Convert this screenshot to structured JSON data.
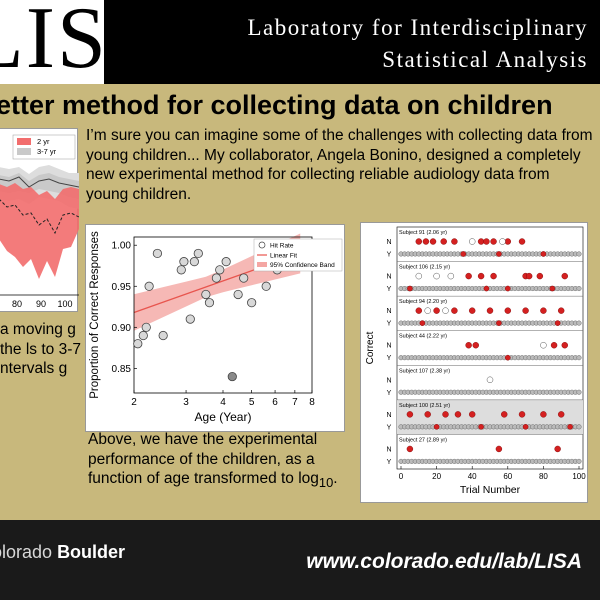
{
  "header": {
    "logo_text": "LISA",
    "lab_line1": "Laboratory for Interdisciplinary",
    "lab_line2": "Statistical Analysis"
  },
  "slide": {
    "title": "etter method for collecting data on children",
    "intro": "I’m sure you can imagine some of the challenges with collecting data from young children... My collaborator, Angela Bonino, designed a completely new experimental method for collecting reliable audiology data from young children.",
    "left_text": "a moving g the ls to 3-7 ntervals g",
    "above_text_main": "Above, we have the experimental performance of the children, as a function of age transformed to log",
    "above_text_sub": "10",
    "above_text_end": "."
  },
  "footer": {
    "university_prefix": "olorado ",
    "university_bold": "Boulder",
    "url": "www.colorado.edu/lab/LISA"
  },
  "left_chart": {
    "legend": [
      "2 yr",
      "3-7 yr"
    ],
    "x_ticks": [
      "80",
      "90",
      "100"
    ],
    "colors": {
      "band_2yr": "#f26d6d",
      "band_37yr": "#c9c9c9"
    }
  },
  "chart_data": [
    {
      "type": "scatter",
      "title": "",
      "xlabel": "Age (Year)",
      "ylabel": "Proportion of Correct Responses",
      "x_ticks": [
        "2",
        "3",
        "4",
        "5",
        "6",
        "7",
        "8"
      ],
      "y_ticks": [
        "0.85",
        "0.90",
        "0.95",
        "1.00"
      ],
      "xlim": [
        2,
        8
      ],
      "ylim": [
        0.82,
        1.01
      ],
      "legend": [
        "Hit Rate",
        "Linear Fit",
        "95% Confidence Band"
      ],
      "series": [
        {
          "name": "Hit Rate",
          "x": [
            2.06,
            2.15,
            2.2,
            2.25,
            2.4,
            2.51,
            2.89,
            2.95,
            3.1,
            3.2,
            3.3,
            3.5,
            3.6,
            3.8,
            3.9,
            4.1,
            4.3,
            4.5,
            4.7,
            5.0,
            5.3,
            5.6,
            6.1,
            7.3
          ],
          "y": [
            0.88,
            0.89,
            0.9,
            0.95,
            0.99,
            0.89,
            0.97,
            0.98,
            0.91,
            0.98,
            0.99,
            0.94,
            0.93,
            0.96,
            0.97,
            0.98,
            0.84,
            0.94,
            0.96,
            0.93,
            0.98,
            0.95,
            0.97,
            0.99
          ]
        },
        {
          "name": "Linear Fit",
          "x": [
            2.0,
            7.3
          ],
          "y": [
            0.918,
            0.99
          ]
        }
      ],
      "colors": {
        "fit": "#e8554e",
        "band": "#f4a6a3",
        "points": "#d8d8d8",
        "highlight": "#8a8a8a"
      }
    },
    {
      "type": "scatter",
      "title": "",
      "xlabel": "Trial Number",
      "ylabel": "Correct",
      "x_ticks": [
        "0",
        "20",
        "40",
        "60",
        "80",
        "100"
      ],
      "xlim": [
        0,
        100
      ],
      "row_labels": [
        "N",
        "Y"
      ],
      "series": [
        {
          "name": "Subject 91 (2.06 yr)",
          "n_hits": [
            10,
            14,
            18,
            24,
            30,
            45,
            48,
            52,
            60,
            68
          ],
          "n_miss": [
            40,
            57
          ],
          "y_hits": [
            35,
            55,
            80
          ],
          "y_miss": []
        },
        {
          "name": "Subject 106 (2.15 yr)",
          "n_hits": [
            38,
            45,
            52,
            70,
            72,
            78,
            92
          ],
          "n_miss": [
            10,
            20,
            28
          ],
          "y_hits": [
            5,
            48,
            60,
            85
          ],
          "y_miss": []
        },
        {
          "name": "Subject 94 (2.20 yr)",
          "n_hits": [
            10,
            20,
            30,
            40,
            50,
            60,
            70,
            80,
            90
          ],
          "n_miss": [
            15,
            25
          ],
          "y_hits": [
            12,
            55,
            88
          ],
          "y_miss": []
        },
        {
          "name": "Subject 44 (2.22 yr)",
          "n_hits": [
            38,
            42,
            86,
            92
          ],
          "n_miss": [
            80
          ],
          "y_hits": [
            60
          ],
          "y_miss": []
        },
        {
          "name": "Subject 107 (2.38 yr)",
          "n_hits": [],
          "n_miss": [
            50
          ],
          "y_hits": [],
          "y_miss": []
        },
        {
          "name": "Subject 100 (2.51 yr)",
          "n_hits": [
            5,
            15,
            25,
            32,
            40,
            58,
            68,
            80,
            90
          ],
          "n_miss": [],
          "y_hits": [
            20,
            45,
            70,
            95
          ],
          "y_miss": []
        },
        {
          "name": "Subject 27 (2.89 yr)",
          "n_hits": [
            5,
            55,
            88
          ],
          "n_miss": [],
          "y_hits": [],
          "y_miss": []
        }
      ],
      "colors": {
        "hit": "#d42020",
        "miss": "#ffffff",
        "point": "#bbbbbb",
        "band": "#dddddd"
      }
    }
  ]
}
